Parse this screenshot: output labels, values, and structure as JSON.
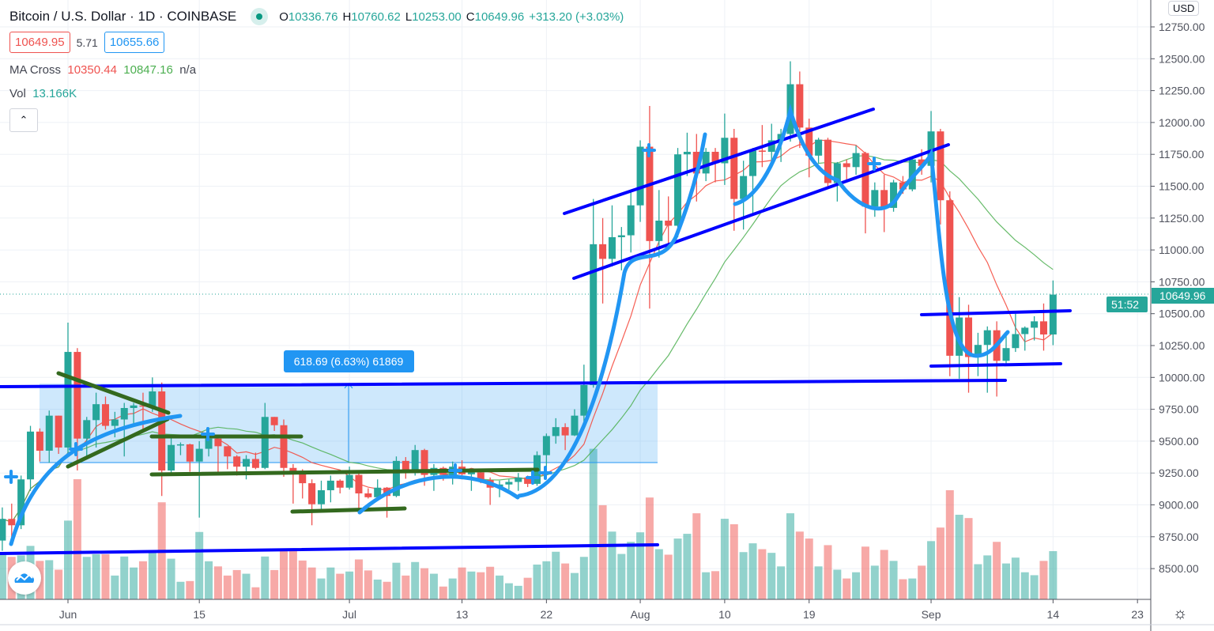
{
  "header": {
    "symbol": "Bitcoin / U.S. Dollar · 1D · COINBASE",
    "open_label": "O",
    "open": "10336.76",
    "high_label": "H",
    "high": "10760.62",
    "low_label": "L",
    "low": "10253.00",
    "close_label": "C",
    "close": "10649.96",
    "change": "+313.20 (+3.03%)",
    "status_icon": "market-open-dot-icon"
  },
  "quote": {
    "bid": "10649.95",
    "spread": "5.71",
    "ask": "10655.66"
  },
  "indicators": {
    "ma_cross_label": "MA Cross",
    "ma_fast": "10350.44",
    "ma_slow": "10847.16",
    "ma_extra": "n/a",
    "vol_label": "Vol",
    "vol_value": "13.166K",
    "collapse_icon": "chevron-up-icon"
  },
  "price_axis": {
    "currency": "USD",
    "last_price": "10649.96",
    "countdown": "51:52",
    "ticks": [
      "12750.00",
      "12500.00",
      "12250.00",
      "12000.00",
      "11750.00",
      "11500.00",
      "11250.00",
      "11000.00",
      "10750.00",
      "10500.00",
      "10250.00",
      "10000.00",
      "9750.00",
      "9500.00",
      "9250.00",
      "9000.00",
      "8750.00",
      "8500.00"
    ]
  },
  "measure_label": "618.69 (6.63%) 61869",
  "colors": {
    "up": "#26a69a",
    "down": "#ef5350",
    "ma_fast": "#f44336",
    "ma_slow": "#4caf50",
    "drawing_blue": "#0000ff",
    "drawing_curve": "#2196f3",
    "drawing_green": "#33691e"
  },
  "chart_data": {
    "type": "candlestick",
    "title": "Bitcoin / U.S. Dollar · 1D · COINBASE",
    "ylim": [
      8350,
      12850
    ],
    "grid": true,
    "x_tick_labels": [
      {
        "date": "2020-06-01",
        "label": "Jun"
      },
      {
        "date": "2020-06-15",
        "label": "15"
      },
      {
        "date": "2020-07-01",
        "label": "Jul"
      },
      {
        "date": "2020-07-13",
        "label": "13"
      },
      {
        "date": "2020-07-22",
        "label": "22"
      },
      {
        "date": "2020-08-01",
        "label": "Aug"
      },
      {
        "date": "2020-08-10",
        "label": "10"
      },
      {
        "date": "2020-08-19",
        "label": "19"
      },
      {
        "date": "2020-09-01",
        "label": "Sep"
      },
      {
        "date": "2020-09-14",
        "label": "14"
      },
      {
        "date": "2020-09-23",
        "label": "23"
      }
    ],
    "ma_lengths": {
      "fast": 9,
      "slow": 21
    },
    "columns": [
      "date",
      "open",
      "high",
      "low",
      "close",
      "volume_k"
    ],
    "candles": [
      [
        "2020-05-25",
        8720,
        8980,
        8640,
        8890,
        12.3
      ],
      [
        "2020-05-26",
        8890,
        9010,
        8700,
        8840,
        11.6
      ],
      [
        "2020-05-27",
        8840,
        9230,
        8810,
        9200,
        12.0
      ],
      [
        "2020-05-28",
        9200,
        9620,
        9110,
        9575,
        14.6
      ],
      [
        "2020-05-29",
        9575,
        9600,
        9340,
        9425,
        10.5
      ],
      [
        "2020-05-30",
        9425,
        9740,
        9330,
        9700,
        10.7
      ],
      [
        "2020-05-31",
        9700,
        9700,
        9400,
        9450,
        8.1
      ],
      [
        "2020-06-01",
        9450,
        10430,
        9410,
        10200,
        21.5
      ],
      [
        "2020-06-02",
        10200,
        10230,
        9270,
        9520,
        32.8
      ],
      [
        "2020-06-03",
        9520,
        9690,
        9380,
        9665,
        11.6
      ],
      [
        "2020-06-04",
        9665,
        9880,
        9450,
        9790,
        12.3
      ],
      [
        "2020-06-05",
        9790,
        9850,
        9590,
        9620,
        12.3
      ],
      [
        "2020-06-06",
        9620,
        9730,
        9530,
        9670,
        6.5
      ],
      [
        "2020-06-07",
        9670,
        9800,
        9380,
        9760,
        11.7
      ],
      [
        "2020-06-08",
        9760,
        9800,
        9630,
        9780,
        8.7
      ],
      [
        "2020-06-09",
        9780,
        9880,
        9570,
        9775,
        10.4
      ],
      [
        "2020-06-10",
        9775,
        10000,
        9730,
        9890,
        13.0
      ],
      [
        "2020-06-11",
        9890,
        9960,
        9070,
        9270,
        26.5
      ],
      [
        "2020-06-12",
        9270,
        9550,
        9230,
        9470,
        11.1
      ],
      [
        "2020-06-13",
        9470,
        9490,
        9390,
        9475,
        4.8
      ],
      [
        "2020-06-14",
        9475,
        9480,
        9260,
        9340,
        5.0
      ],
      [
        "2020-06-15",
        9340,
        9500,
        8900,
        9440,
        18.4
      ],
      [
        "2020-06-16",
        9440,
        9580,
        9380,
        9520,
        10.4
      ],
      [
        "2020-06-17",
        9520,
        9540,
        9250,
        9460,
        9.0
      ],
      [
        "2020-06-18",
        9460,
        9460,
        9280,
        9380,
        6.5
      ],
      [
        "2020-06-19",
        9380,
        9390,
        9230,
        9300,
        8.0
      ],
      [
        "2020-06-20",
        9300,
        9390,
        9200,
        9360,
        7.0
      ],
      [
        "2020-06-21",
        9360,
        9410,
        9280,
        9290,
        3.3
      ],
      [
        "2020-06-22",
        9290,
        9800,
        9280,
        9690,
        11.7
      ],
      [
        "2020-06-23",
        9690,
        9690,
        9580,
        9625,
        8.0
      ],
      [
        "2020-06-24",
        9625,
        9670,
        9220,
        9290,
        13.5
      ],
      [
        "2020-06-25",
        9290,
        9320,
        9010,
        9250,
        13.5
      ],
      [
        "2020-06-26",
        9250,
        9280,
        9050,
        9170,
        10.6
      ],
      [
        "2020-06-27",
        9170,
        9200,
        8840,
        9005,
        8.7
      ],
      [
        "2020-06-28",
        9005,
        9190,
        8950,
        9115,
        5.7
      ],
      [
        "2020-06-29",
        9115,
        9230,
        9020,
        9190,
        8.7
      ],
      [
        "2020-06-30",
        9190,
        9200,
        9090,
        9135,
        7.0
      ],
      [
        "2020-07-01",
        9135,
        9300,
        9120,
        9235,
        7.6
      ],
      [
        "2020-07-02",
        9235,
        9270,
        8950,
        9090,
        10.9
      ],
      [
        "2020-07-03",
        9090,
        9130,
        9050,
        9060,
        7.9
      ],
      [
        "2020-07-04",
        9060,
        9200,
        9050,
        9135,
        5.4
      ],
      [
        "2020-07-05",
        9135,
        9140,
        8900,
        9070,
        4.8
      ],
      [
        "2020-07-06",
        9070,
        9380,
        9060,
        9345,
        10.0
      ],
      [
        "2020-07-07",
        9345,
        9375,
        9205,
        9250,
        6.5
      ],
      [
        "2020-07-08",
        9250,
        9470,
        9230,
        9430,
        10.2
      ],
      [
        "2020-07-09",
        9430,
        9440,
        9150,
        9235,
        8.5
      ],
      [
        "2020-07-10",
        9235,
        9320,
        9110,
        9290,
        7.0
      ],
      [
        "2020-07-11",
        9290,
        9300,
        9190,
        9235,
        3.5
      ],
      [
        "2020-07-12",
        9235,
        9340,
        9160,
        9300,
        5.7
      ],
      [
        "2020-07-13",
        9300,
        9350,
        9200,
        9240,
        8.7
      ],
      [
        "2020-07-14",
        9240,
        9280,
        9110,
        9255,
        7.6
      ],
      [
        "2020-07-15",
        9255,
        9270,
        9170,
        9195,
        7.4
      ],
      [
        "2020-07-16",
        9195,
        9215,
        9000,
        9135,
        8.9
      ],
      [
        "2020-07-17",
        9135,
        9190,
        9060,
        9160,
        6.5
      ],
      [
        "2020-07-18",
        9160,
        9200,
        9120,
        9180,
        4.4
      ],
      [
        "2020-07-19",
        9180,
        9250,
        9110,
        9215,
        3.7
      ],
      [
        "2020-07-20",
        9215,
        9230,
        9140,
        9165,
        5.9
      ],
      [
        "2020-07-21",
        9165,
        9420,
        9150,
        9390,
        9.5
      ],
      [
        "2020-07-22",
        9390,
        9560,
        9280,
        9540,
        10.4
      ],
      [
        "2020-07-23",
        9540,
        9680,
        9480,
        9610,
        13.0
      ],
      [
        "2020-07-24",
        9610,
        9640,
        9430,
        9545,
        9.8
      ],
      [
        "2020-07-25",
        9545,
        9750,
        9540,
        9700,
        7.2
      ],
      [
        "2020-07-26",
        9700,
        10100,
        9650,
        9940,
        11.6
      ],
      [
        "2020-07-27",
        9940,
        11400,
        9920,
        11045,
        41.1
      ],
      [
        "2020-07-28",
        11045,
        11250,
        10580,
        10930,
        25.7
      ],
      [
        "2020-07-29",
        10930,
        11350,
        10870,
        11100,
        18.5
      ],
      [
        "2020-07-30",
        11100,
        11180,
        10840,
        11115,
        12.4
      ],
      [
        "2020-07-31",
        11115,
        11450,
        10980,
        11350,
        15.7
      ],
      [
        "2020-08-01",
        11350,
        11860,
        11220,
        11810,
        18.3
      ],
      [
        "2020-08-02",
        11810,
        12130,
        10540,
        11070,
        27.8
      ],
      [
        "2020-08-03",
        11070,
        11470,
        10940,
        11230,
        13.7
      ],
      [
        "2020-08-04",
        11230,
        11420,
        11000,
        11190,
        12.2
      ],
      [
        "2020-08-05",
        11190,
        11800,
        11100,
        11750,
        16.6
      ],
      [
        "2020-08-06",
        11750,
        11920,
        11580,
        11770,
        17.9
      ],
      [
        "2020-08-07",
        11770,
        11910,
        11380,
        11600,
        23.5
      ],
      [
        "2020-08-08",
        11600,
        11800,
        11540,
        11770,
        7.4
      ],
      [
        "2020-08-09",
        11770,
        11800,
        11530,
        11680,
        7.7
      ],
      [
        "2020-08-10",
        11680,
        12070,
        11510,
        11880,
        22.0
      ],
      [
        "2020-08-11",
        11880,
        11950,
        11150,
        11400,
        20.5
      ],
      [
        "2020-08-12",
        11400,
        11700,
        11160,
        11580,
        12.9
      ],
      [
        "2020-08-13",
        11580,
        11800,
        11280,
        11780,
        15.3
      ],
      [
        "2020-08-14",
        11780,
        11980,
        11650,
        11770,
        13.7
      ],
      [
        "2020-08-15",
        11770,
        11990,
        11680,
        11860,
        12.7
      ],
      [
        "2020-08-16",
        11860,
        11950,
        11690,
        11910,
        9.0
      ],
      [
        "2020-08-17",
        11910,
        12480,
        11850,
        12300,
        23.5
      ],
      [
        "2020-08-18",
        12300,
        12400,
        11800,
        11960,
        18.5
      ],
      [
        "2020-08-19",
        11960,
        12030,
        11570,
        11740,
        16.6
      ],
      [
        "2020-08-20",
        11740,
        11880,
        11680,
        11865,
        9.0
      ],
      [
        "2020-08-21",
        11865,
        11880,
        11480,
        11525,
        14.8
      ],
      [
        "2020-08-22",
        11525,
        11690,
        11380,
        11680,
        8.1
      ],
      [
        "2020-08-23",
        11680,
        11710,
        11530,
        11650,
        5.7
      ],
      [
        "2020-08-24",
        11650,
        11820,
        11590,
        11760,
        7.4
      ],
      [
        "2020-08-25",
        11760,
        11770,
        11130,
        11340,
        14.4
      ],
      [
        "2020-08-26",
        11340,
        11530,
        11260,
        11470,
        9.2
      ],
      [
        "2020-08-27",
        11470,
        11590,
        11140,
        11330,
        13.5
      ],
      [
        "2020-08-28",
        11330,
        11550,
        11300,
        11530,
        10.5
      ],
      [
        "2020-08-29",
        11530,
        11580,
        11440,
        11475,
        5.5
      ],
      [
        "2020-08-30",
        11475,
        11720,
        11460,
        11710,
        5.7
      ],
      [
        "2020-08-31",
        11710,
        11790,
        11590,
        11660,
        9.2
      ],
      [
        "2020-09-01",
        11660,
        12090,
        11530,
        11930,
        15.9
      ],
      [
        "2020-09-02",
        11930,
        11950,
        11200,
        11390,
        19.6
      ],
      [
        "2020-09-03",
        11390,
        11460,
        10010,
        10170,
        29.8
      ],
      [
        "2020-09-04",
        10170,
        10630,
        9990,
        10470,
        23.1
      ],
      [
        "2020-09-05",
        10470,
        10570,
        9880,
        10160,
        22.2
      ],
      [
        "2020-09-06",
        10160,
        10350,
        10010,
        10255,
        9.6
      ],
      [
        "2020-09-07",
        10255,
        10400,
        9880,
        10370,
        12.0
      ],
      [
        "2020-09-08",
        10370,
        10440,
        9850,
        10130,
        15.7
      ],
      [
        "2020-09-09",
        10130,
        10350,
        10110,
        10230,
        9.8
      ],
      [
        "2020-09-10",
        10230,
        10500,
        10200,
        10340,
        11.4
      ],
      [
        "2020-09-11",
        10340,
        10400,
        10210,
        10390,
        7.4
      ],
      [
        "2020-09-12",
        10390,
        10480,
        10290,
        10440,
        6.6
      ],
      [
        "2020-09-13",
        10440,
        10580,
        10210,
        10337,
        10.5
      ],
      [
        "2020-09-14",
        10336.76,
        10760.62,
        10253.0,
        10649.96,
        13.166
      ]
    ]
  }
}
